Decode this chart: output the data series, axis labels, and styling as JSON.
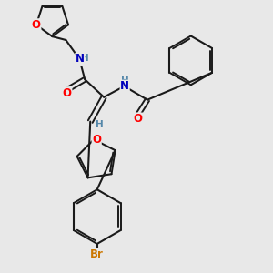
{
  "bg_color": "#e8e8e8",
  "atom_colors": {
    "O": "#ff0000",
    "N": "#0000bb",
    "Br": "#cc7700",
    "C": "#000000",
    "H": "#5588aa"
  },
  "bond_color": "#1a1a1a",
  "figsize": [
    3.0,
    3.0
  ],
  "dpi": 100
}
